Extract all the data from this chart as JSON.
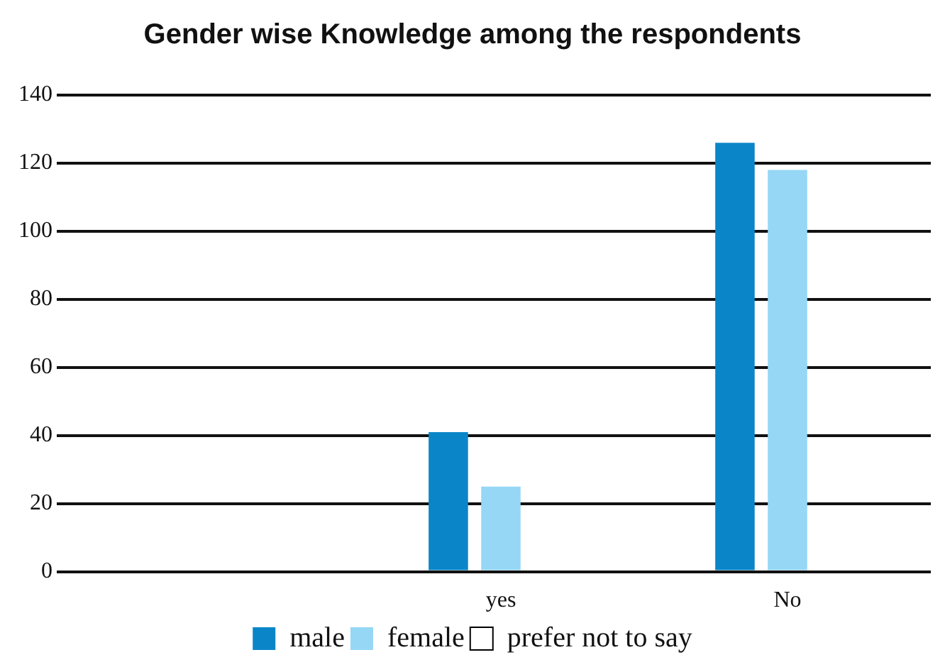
{
  "chart_data": {
    "type": "bar",
    "title": "Gender wise Knowledge among the respondents",
    "categories": [
      null,
      "yes",
      "No"
    ],
    "series": [
      {
        "name": "male",
        "color": "#0a86c8",
        "values": [
          null,
          41,
          126
        ]
      },
      {
        "name": "female",
        "color": "#96d7f5",
        "values": [
          null,
          25,
          118
        ]
      },
      {
        "name": "prefer not to say",
        "color": "#ffffff",
        "values": [
          null,
          0,
          0
        ]
      }
    ],
    "ylim": [
      0,
      140
    ],
    "yticks": [
      0,
      20,
      40,
      60,
      80,
      100,
      120,
      140
    ],
    "grid": "y",
    "legend": "bottom"
  }
}
